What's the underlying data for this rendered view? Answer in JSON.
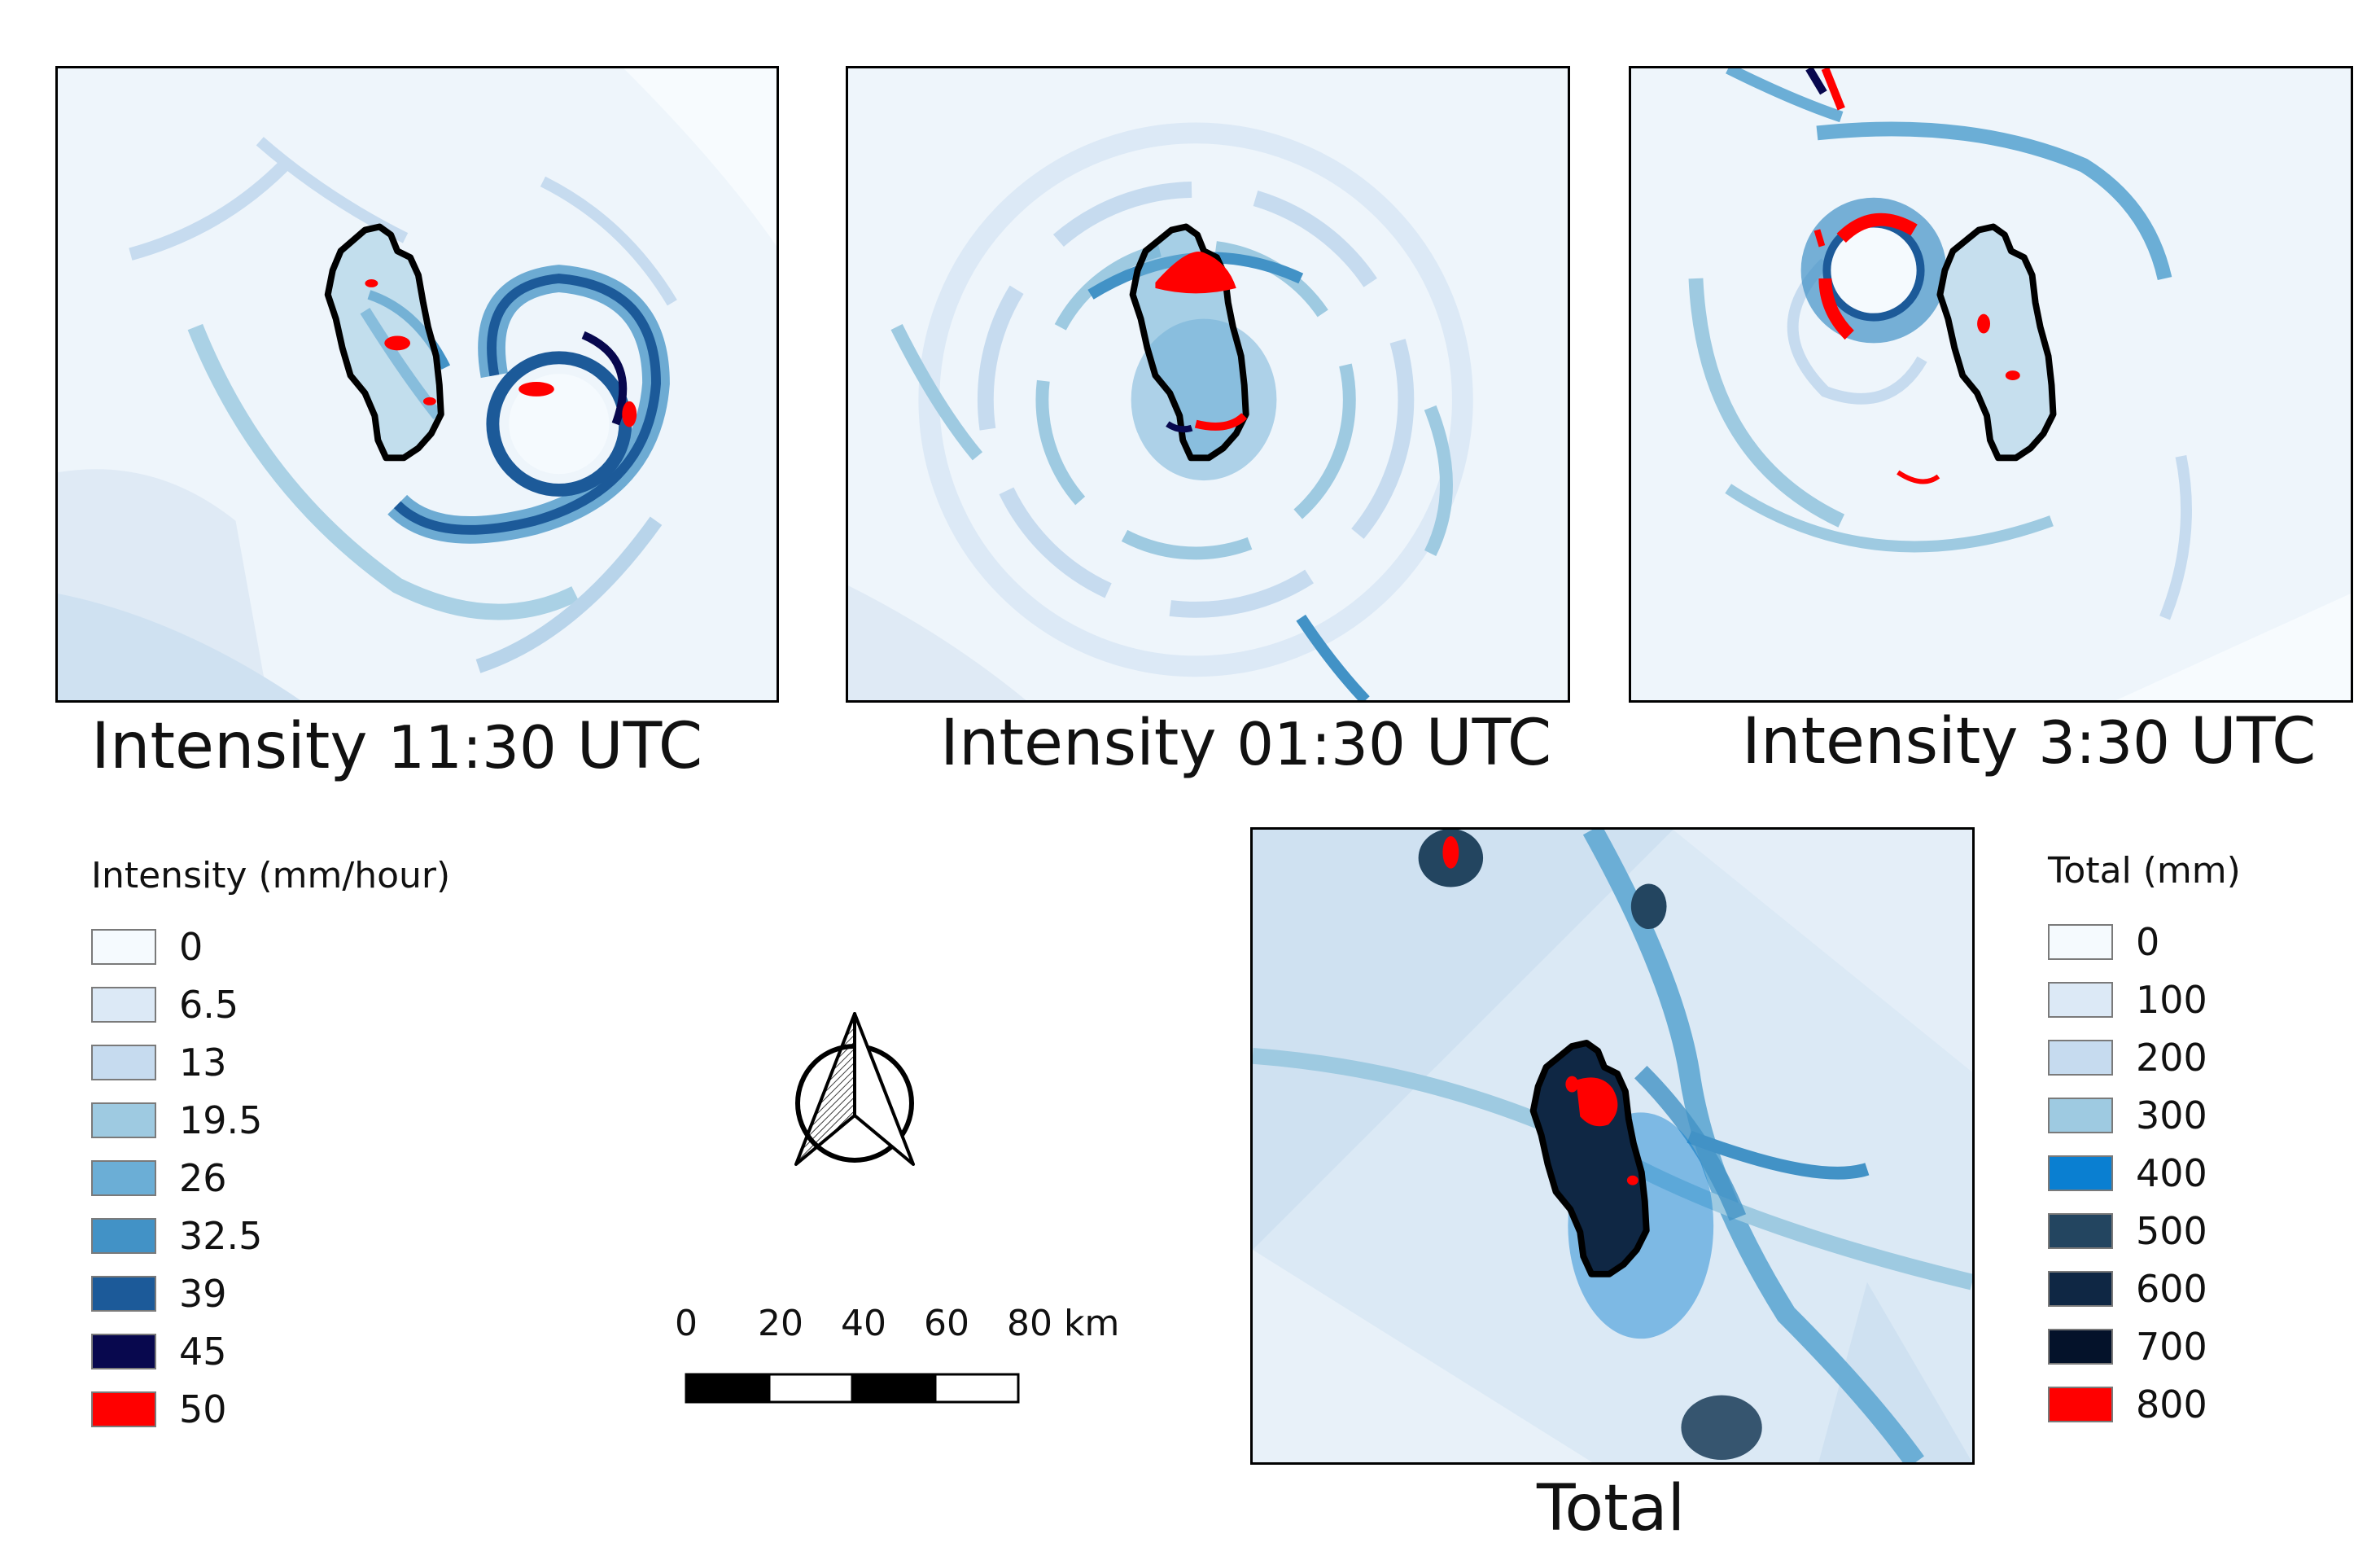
{
  "maps": [
    {
      "caption_prefix": "Intensity",
      "caption_time": "11:30",
      "caption_suffix": "UTC"
    },
    {
      "caption_prefix": "Intensity",
      "caption_time": "01:30",
      "caption_suffix": "UTC"
    },
    {
      "caption_prefix": "Intensity",
      "caption_time": "3:30",
      "caption_suffix": "UTC"
    },
    {
      "caption": "Total"
    }
  ],
  "legend_intensity": {
    "title": "Intensity (mm/hour)",
    "items": [
      {
        "label": "0",
        "color": "#f5fafe"
      },
      {
        "label": "6.5",
        "color": "#dce9f6"
      },
      {
        "label": "13",
        "color": "#c6dbef"
      },
      {
        "label": "19.5",
        "color": "#9ecae1"
      },
      {
        "label": "26",
        "color": "#6baed6"
      },
      {
        "label": "32.5",
        "color": "#4292c6"
      },
      {
        "label": "39",
        "color": "#1c5a99"
      },
      {
        "label": "45",
        "color": "#08084e"
      },
      {
        "label": "50",
        "color": "#ff0000"
      }
    ]
  },
  "legend_total": {
    "title": "Total (mm)",
    "items": [
      {
        "label": "0",
        "color": "#f5fafe"
      },
      {
        "label": "100",
        "color": "#dce9f6"
      },
      {
        "label": "200",
        "color": "#c6dbef"
      },
      {
        "label": "300",
        "color": "#9ecae1"
      },
      {
        "label": "400",
        "color": "#0a7fd1"
      },
      {
        "label": "500",
        "color": "#234560"
      },
      {
        "label": "600",
        "color": "#0f2744"
      },
      {
        "label": "700",
        "color": "#04122a"
      },
      {
        "label": "800",
        "color": "#ff0000"
      }
    ]
  },
  "scalebar": {
    "labels": [
      "0",
      "20",
      "40",
      "60",
      "80 km"
    ]
  },
  "north_arrow": {
    "icon": "north-arrow-icon"
  }
}
